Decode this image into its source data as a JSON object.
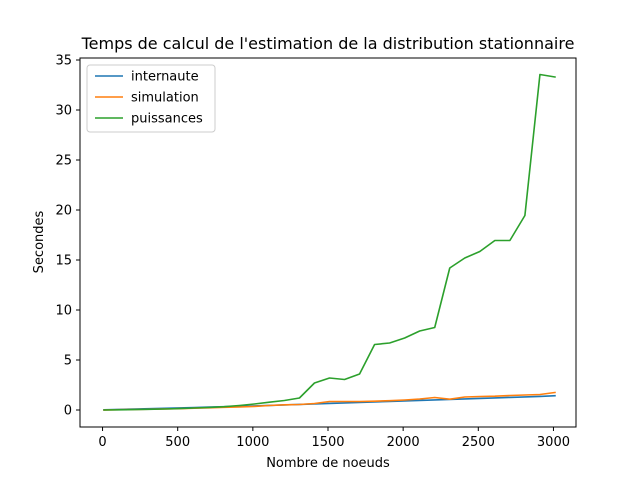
{
  "chart_data": {
    "type": "line",
    "title": "Temps de calcul de l'estimation de la distribution stationnaire",
    "xlabel": "Nombre de noeuds",
    "ylabel": "Secondes",
    "xlim": [
      -150,
      3150
    ],
    "ylim": [
      -1.7,
      35.2
    ],
    "xticks": [
      0,
      500,
      1000,
      1500,
      2000,
      2500,
      3000
    ],
    "yticks": [
      0,
      5,
      10,
      15,
      20,
      25,
      30,
      35
    ],
    "grid": false,
    "legend_position": "top-left",
    "x": [
      10,
      110,
      210,
      310,
      410,
      510,
      610,
      710,
      810,
      910,
      1010,
      1110,
      1210,
      1310,
      1410,
      1510,
      1610,
      1710,
      1810,
      1910,
      2010,
      2110,
      2210,
      2310,
      2410,
      2510,
      2610,
      2710,
      2810,
      2910,
      3010
    ],
    "series": [
      {
        "name": "internaute",
        "color": "#1f77b4",
        "values": [
          0.02,
          0.06,
          0.1,
          0.13,
          0.17,
          0.21,
          0.25,
          0.29,
          0.33,
          0.37,
          0.41,
          0.46,
          0.51,
          0.56,
          0.61,
          0.66,
          0.71,
          0.76,
          0.81,
          0.86,
          0.91,
          0.96,
          1.01,
          1.06,
          1.11,
          1.16,
          1.21,
          1.26,
          1.31,
          1.36,
          1.43
        ]
      },
      {
        "name": "simulation",
        "color": "#ff7f0e",
        "values": [
          0.0,
          0.03,
          0.05,
          0.08,
          0.1,
          0.13,
          0.18,
          0.22,
          0.27,
          0.3,
          0.36,
          0.45,
          0.52,
          0.55,
          0.65,
          0.85,
          0.85,
          0.85,
          0.88,
          0.93,
          1.0,
          1.1,
          1.25,
          1.08,
          1.3,
          1.35,
          1.38,
          1.45,
          1.5,
          1.55,
          1.75
        ]
      },
      {
        "name": "puissances",
        "color": "#2ca02c",
        "values": [
          0.0,
          0.02,
          0.04,
          0.07,
          0.1,
          0.14,
          0.2,
          0.26,
          0.33,
          0.45,
          0.6,
          0.78,
          0.95,
          1.2,
          2.7,
          3.2,
          3.05,
          3.6,
          6.55,
          6.7,
          7.2,
          7.9,
          8.25,
          14.2,
          15.2,
          15.85,
          16.95,
          16.95,
          19.45,
          33.55,
          33.3
        ]
      }
    ]
  }
}
